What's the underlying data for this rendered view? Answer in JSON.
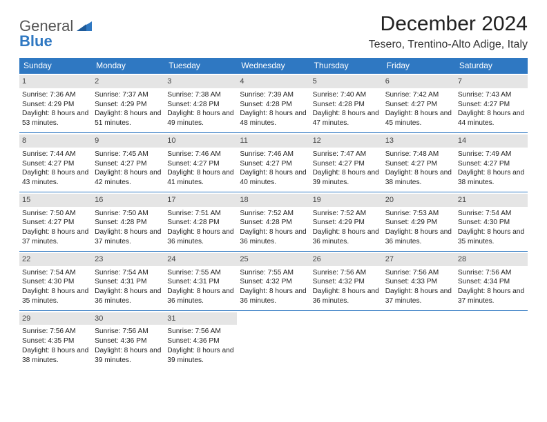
{
  "logo": {
    "word1": "General",
    "word2": "Blue"
  },
  "title": "December 2024",
  "location": "Tesero, Trentino-Alto Adige, Italy",
  "colors": {
    "header_bg": "#2f78c2",
    "header_fg": "#ffffff",
    "daynum_bg": "#e5e5e5",
    "rule": "#2f78c2",
    "text": "#222222"
  },
  "weekdays": [
    "Sunday",
    "Monday",
    "Tuesday",
    "Wednesday",
    "Thursday",
    "Friday",
    "Saturday"
  ],
  "weeks": [
    [
      {
        "n": "1",
        "sr": "7:36 AM",
        "ss": "4:29 PM",
        "dl": "8 hours and 53 minutes."
      },
      {
        "n": "2",
        "sr": "7:37 AM",
        "ss": "4:29 PM",
        "dl": "8 hours and 51 minutes."
      },
      {
        "n": "3",
        "sr": "7:38 AM",
        "ss": "4:28 PM",
        "dl": "8 hours and 49 minutes."
      },
      {
        "n": "4",
        "sr": "7:39 AM",
        "ss": "4:28 PM",
        "dl": "8 hours and 48 minutes."
      },
      {
        "n": "5",
        "sr": "7:40 AM",
        "ss": "4:28 PM",
        "dl": "8 hours and 47 minutes."
      },
      {
        "n": "6",
        "sr": "7:42 AM",
        "ss": "4:27 PM",
        "dl": "8 hours and 45 minutes."
      },
      {
        "n": "7",
        "sr": "7:43 AM",
        "ss": "4:27 PM",
        "dl": "8 hours and 44 minutes."
      }
    ],
    [
      {
        "n": "8",
        "sr": "7:44 AM",
        "ss": "4:27 PM",
        "dl": "8 hours and 43 minutes."
      },
      {
        "n": "9",
        "sr": "7:45 AM",
        "ss": "4:27 PM",
        "dl": "8 hours and 42 minutes."
      },
      {
        "n": "10",
        "sr": "7:46 AM",
        "ss": "4:27 PM",
        "dl": "8 hours and 41 minutes."
      },
      {
        "n": "11",
        "sr": "7:46 AM",
        "ss": "4:27 PM",
        "dl": "8 hours and 40 minutes."
      },
      {
        "n": "12",
        "sr": "7:47 AM",
        "ss": "4:27 PM",
        "dl": "8 hours and 39 minutes."
      },
      {
        "n": "13",
        "sr": "7:48 AM",
        "ss": "4:27 PM",
        "dl": "8 hours and 38 minutes."
      },
      {
        "n": "14",
        "sr": "7:49 AM",
        "ss": "4:27 PM",
        "dl": "8 hours and 38 minutes."
      }
    ],
    [
      {
        "n": "15",
        "sr": "7:50 AM",
        "ss": "4:27 PM",
        "dl": "8 hours and 37 minutes."
      },
      {
        "n": "16",
        "sr": "7:50 AM",
        "ss": "4:28 PM",
        "dl": "8 hours and 37 minutes."
      },
      {
        "n": "17",
        "sr": "7:51 AM",
        "ss": "4:28 PM",
        "dl": "8 hours and 36 minutes."
      },
      {
        "n": "18",
        "sr": "7:52 AM",
        "ss": "4:28 PM",
        "dl": "8 hours and 36 minutes."
      },
      {
        "n": "19",
        "sr": "7:52 AM",
        "ss": "4:29 PM",
        "dl": "8 hours and 36 minutes."
      },
      {
        "n": "20",
        "sr": "7:53 AM",
        "ss": "4:29 PM",
        "dl": "8 hours and 36 minutes."
      },
      {
        "n": "21",
        "sr": "7:54 AM",
        "ss": "4:30 PM",
        "dl": "8 hours and 35 minutes."
      }
    ],
    [
      {
        "n": "22",
        "sr": "7:54 AM",
        "ss": "4:30 PM",
        "dl": "8 hours and 35 minutes."
      },
      {
        "n": "23",
        "sr": "7:54 AM",
        "ss": "4:31 PM",
        "dl": "8 hours and 36 minutes."
      },
      {
        "n": "24",
        "sr": "7:55 AM",
        "ss": "4:31 PM",
        "dl": "8 hours and 36 minutes."
      },
      {
        "n": "25",
        "sr": "7:55 AM",
        "ss": "4:32 PM",
        "dl": "8 hours and 36 minutes."
      },
      {
        "n": "26",
        "sr": "7:56 AM",
        "ss": "4:32 PM",
        "dl": "8 hours and 36 minutes."
      },
      {
        "n": "27",
        "sr": "7:56 AM",
        "ss": "4:33 PM",
        "dl": "8 hours and 37 minutes."
      },
      {
        "n": "28",
        "sr": "7:56 AM",
        "ss": "4:34 PM",
        "dl": "8 hours and 37 minutes."
      }
    ],
    [
      {
        "n": "29",
        "sr": "7:56 AM",
        "ss": "4:35 PM",
        "dl": "8 hours and 38 minutes."
      },
      {
        "n": "30",
        "sr": "7:56 AM",
        "ss": "4:36 PM",
        "dl": "8 hours and 39 minutes."
      },
      {
        "n": "31",
        "sr": "7:56 AM",
        "ss": "4:36 PM",
        "dl": "8 hours and 39 minutes."
      },
      null,
      null,
      null,
      null
    ]
  ],
  "labels": {
    "sunrise": "Sunrise:",
    "sunset": "Sunset:",
    "daylight": "Daylight:"
  }
}
